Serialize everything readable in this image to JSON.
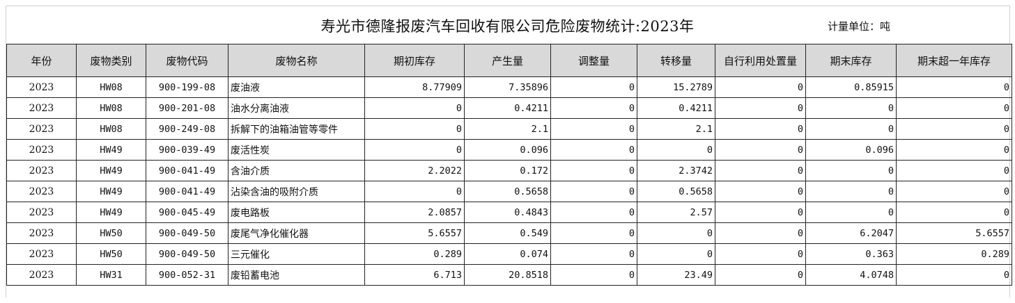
{
  "title": "寿光市德隆报废汽车回收有限公司危险废物统计:2023年",
  "unit": "计量单位：吨",
  "columns": [
    "年份",
    "废物类别",
    "废物代码",
    "废物名称",
    "期初库存",
    "产生量",
    "调整量",
    "转移量",
    "自行利用处置量",
    "期末库存",
    "期末超一年库存"
  ],
  "rows": [
    [
      "2023",
      "HW08",
      "900-199-08",
      "废油液",
      "8.77909",
      "7.35896",
      "0",
      "15.2789",
      "0",
      "0.85915",
      "0"
    ],
    [
      "2023",
      "HW08",
      "900-201-08",
      "油水分离油液",
      "0",
      "0.4211",
      "0",
      "0.4211",
      "0",
      "0",
      "0"
    ],
    [
      "2023",
      "HW08",
      "900-249-08",
      "拆解下的油箱油管等零件",
      "0",
      "2.1",
      "0",
      "2.1",
      "0",
      "0",
      "0"
    ],
    [
      "2023",
      "HW49",
      "900-039-49",
      "废活性炭",
      "0",
      "0.096",
      "0",
      "0",
      "0",
      "0.096",
      "0"
    ],
    [
      "2023",
      "HW49",
      "900-041-49",
      "含油介质",
      "2.2022",
      "0.172",
      "0",
      "2.3742",
      "0",
      "0",
      "0"
    ],
    [
      "2023",
      "HW49",
      "900-041-49",
      "沾染含油的吸附介质",
      "0",
      "0.5658",
      "0",
      "0.5658",
      "0",
      "0",
      "0"
    ],
    [
      "2023",
      "HW49",
      "900-045-49",
      "废电路板",
      "2.0857",
      "0.4843",
      "0",
      "2.57",
      "0",
      "0",
      "0"
    ],
    [
      "2023",
      "HW50",
      "900-049-50",
      "废尾气净化催化器",
      "5.6557",
      "0.549",
      "0",
      "0",
      "0",
      "6.2047",
      "5.6557"
    ],
    [
      "2023",
      "HW50",
      "900-049-50",
      "三元催化",
      "0.289",
      "0.074",
      "0",
      "0",
      "0",
      "0.363",
      "0.289"
    ],
    [
      "2023",
      "HW31",
      "900-052-31",
      "废铅蓄电池",
      "6.713",
      "20.8518",
      "0",
      "23.49",
      "0",
      "4.0748",
      "0"
    ]
  ]
}
